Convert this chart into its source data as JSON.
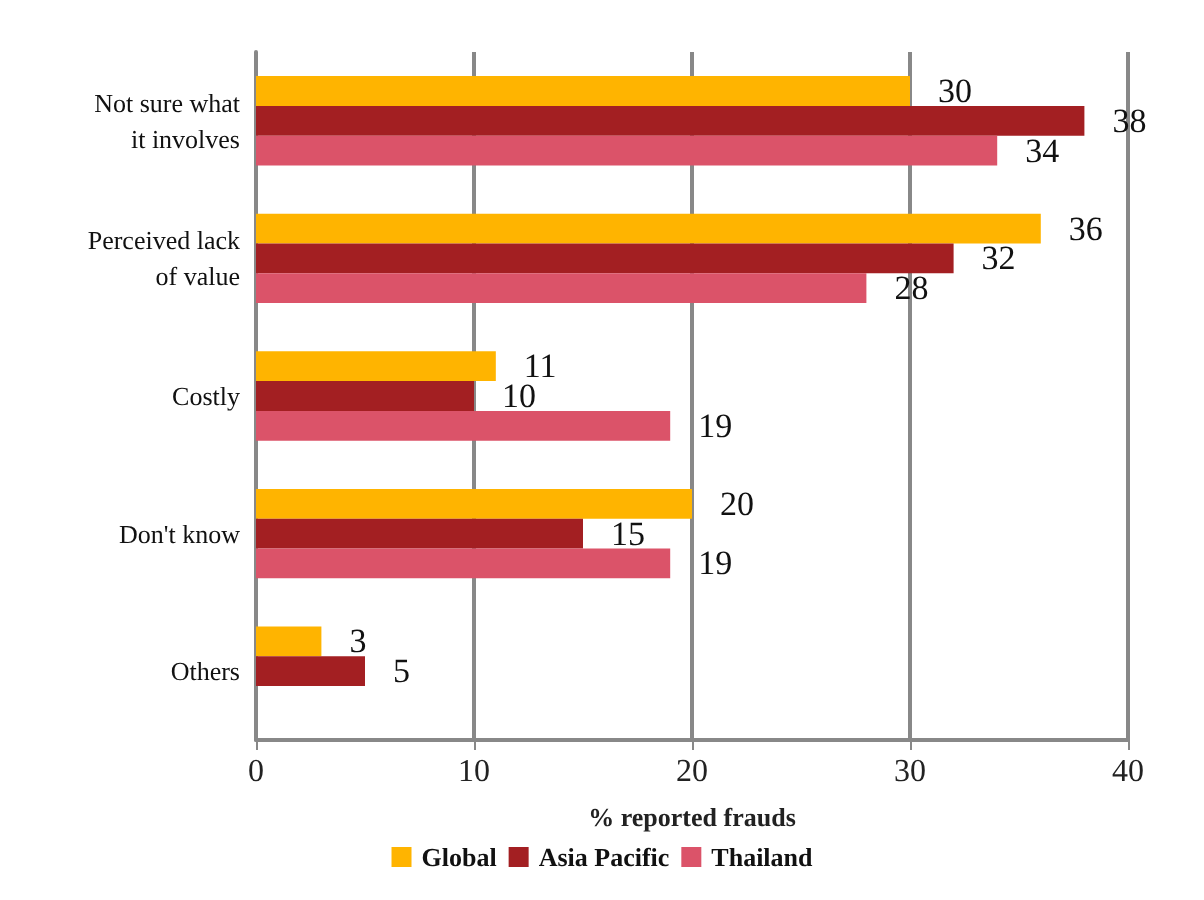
{
  "chart_data": {
    "type": "bar",
    "orientation": "horizontal",
    "xlabel": "% reported frauds",
    "categories": [
      "Not sure what\nit involves",
      "Perceived lack\nof value",
      "Costly",
      "Don't know",
      "Others"
    ],
    "series": [
      {
        "name": "Global",
        "color": "#ffb400",
        "values": [
          30,
          36,
          11,
          20,
          3
        ]
      },
      {
        "name": "Asia Pacific",
        "color": "#a31f22",
        "values": [
          38,
          32,
          10,
          15,
          5
        ]
      },
      {
        "name": "Thailand",
        "color": "#db5369",
        "values": [
          34,
          28,
          19,
          19,
          null
        ]
      }
    ],
    "xlim": [
      0,
      40
    ],
    "xticks": [
      0,
      10,
      20,
      30,
      40
    ],
    "grid": "x",
    "legend": "bottom",
    "data_labels": true
  }
}
